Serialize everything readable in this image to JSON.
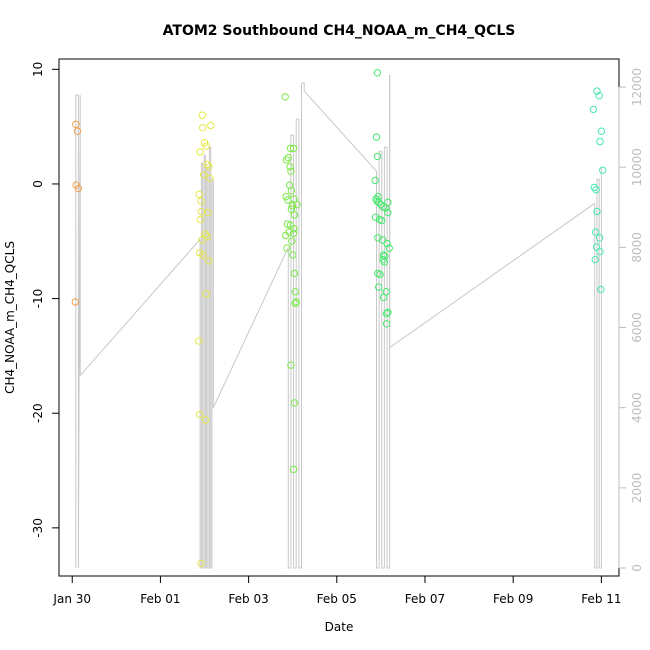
{
  "chart_data": {
    "type": "scatter",
    "title": "ATOM2 Southbound CH4_NOAA_m_CH4_QCLS",
    "xlabel": "Date",
    "ylabel": "CH4_NOAA_m_CH4_QCLS",
    "x_unit": "days since Jan 30",
    "xlim": [
      -0.3,
      12.4
    ],
    "ylim": [
      -34.2,
      10.9
    ],
    "y2lim": [
      -200,
      12700
    ],
    "x_ticks": [
      {
        "value": 0,
        "label": "Jan 30"
      },
      {
        "value": 2,
        "label": "Feb 01"
      },
      {
        "value": 4,
        "label": "Feb 03"
      },
      {
        "value": 6,
        "label": "Feb 05"
      },
      {
        "value": 8,
        "label": "Feb 07"
      },
      {
        "value": 10,
        "label": "Feb 09"
      },
      {
        "value": 12,
        "label": "Feb 11"
      }
    ],
    "y_ticks": [
      {
        "value": 10,
        "label": "10"
      },
      {
        "value": 0,
        "label": "0"
      },
      {
        "value": -10,
        "label": "-10"
      },
      {
        "value": -20,
        "label": "-20"
      },
      {
        "value": -30,
        "label": "-30"
      }
    ],
    "y2_ticks": [
      {
        "value": 0,
        "label": "0"
      },
      {
        "value": 2000,
        "label": "2000"
      },
      {
        "value": 4000,
        "label": "4000"
      },
      {
        "value": 6000,
        "label": "6000"
      },
      {
        "value": 8000,
        "label": "8000"
      },
      {
        "value": 10000,
        "label": "10000"
      },
      {
        "value": 12000,
        "label": "12000"
      }
    ],
    "altitude_line": {
      "color": "#c8c8c8",
      "segments": [
        {
          "x": [
            0.08,
            0.08,
            0.14,
            0.14,
            0.18,
            0.18
          ],
          "y": [
            0,
            11800,
            11800,
            0,
            11800,
            4800
          ]
        },
        {
          "x": [
            0.18,
            2.9
          ],
          "y": [
            4800,
            8200
          ]
        },
        {
          "x": [
            2.9,
            2.9,
            2.93,
            2.93,
            2.96,
            2.96,
            2.99,
            2.99,
            3.02,
            3.02,
            3.05,
            3.05,
            3.08,
            3.08,
            3.11,
            3.11,
            3.14,
            3.14,
            3.17,
            3.17,
            3.2,
            3.2
          ],
          "y": [
            8200,
            0,
            0,
            10100,
            10100,
            0,
            0,
            10300,
            10300,
            0,
            0,
            10000,
            10000,
            0,
            0,
            10500,
            10500,
            0,
            0,
            9700,
            9700,
            4000
          ]
        },
        {
          "x": [
            3.2,
            4.9
          ],
          "y": [
            4000,
            8000
          ]
        },
        {
          "x": [
            4.9,
            4.9,
            4.96,
            4.96,
            5.02,
            5.02,
            5.08,
            5.08,
            5.14,
            5.14,
            5.2,
            5.2,
            5.26,
            5.26
          ],
          "y": [
            8000,
            0,
            0,
            10800,
            10800,
            0,
            0,
            11200,
            11200,
            0,
            0,
            12100,
            12100,
            11900
          ]
        },
        {
          "x": [
            5.26,
            6.9
          ],
          "y": [
            11900,
            9900
          ]
        },
        {
          "x": [
            6.9,
            6.9,
            6.96,
            6.96,
            7.02,
            7.02,
            7.08,
            7.08,
            7.14,
            7.14,
            7.2,
            7.2
          ],
          "y": [
            9900,
            0,
            0,
            10400,
            10400,
            0,
            0,
            10500,
            10500,
            0,
            0,
            12300
          ]
        },
        {
          "x": [
            7.2,
            7.2
          ],
          "y": [
            12300,
            5500
          ]
        },
        {
          "x": [
            7.2,
            11.85
          ],
          "y": [
            5500,
            9100
          ]
        },
        {
          "x": [
            11.85,
            11.85,
            11.9,
            11.9,
            11.95,
            11.95,
            12.0,
            12.0
          ],
          "y": [
            9100,
            0,
            0,
            9700,
            9700,
            0,
            0,
            10000
          ]
        }
      ]
    },
    "series": [
      {
        "color": "#f0a050",
        "points": [
          [
            0.08,
            5.2
          ],
          [
            0.12,
            4.6
          ],
          [
            0.09,
            -0.1
          ],
          [
            0.14,
            -0.4
          ],
          [
            0.07,
            -10.3
          ]
        ]
      },
      {
        "color": "#e6e64a",
        "points": [
          [
            2.87,
            -13.7
          ],
          [
            2.89,
            -20.1
          ],
          [
            2.95,
            6.0
          ],
          [
            3.14,
            5.1
          ],
          [
            2.96,
            4.9
          ],
          [
            3.0,
            3.6
          ],
          [
            3.04,
            3.3
          ],
          [
            2.9,
            2.8
          ],
          [
            3.06,
            1.7
          ],
          [
            3.1,
            1.5
          ],
          [
            2.98,
            0.8
          ],
          [
            3.12,
            0.5
          ],
          [
            2.88,
            -0.9
          ],
          [
            2.92,
            -1.5
          ],
          [
            2.93,
            -2.4
          ],
          [
            3.08,
            -2.5
          ],
          [
            2.91,
            -3.1
          ],
          [
            3.02,
            -4.4
          ],
          [
            3.06,
            -4.6
          ],
          [
            2.94,
            -4.9
          ],
          [
            2.89,
            -6.0
          ],
          [
            2.96,
            -6.2
          ],
          [
            3.1,
            -6.7
          ],
          [
            3.04,
            -9.6
          ],
          [
            3.02,
            -20.6
          ],
          [
            2.92,
            -33.1
          ]
        ]
      },
      {
        "color": "#7ee84a",
        "points": [
          [
            4.83,
            7.6
          ],
          [
            4.95,
            3.1
          ],
          [
            5.02,
            3.1
          ],
          [
            4.9,
            2.3
          ],
          [
            4.86,
            2.1
          ],
          [
            4.94,
            1.5
          ],
          [
            4.96,
            1.1
          ],
          [
            4.93,
            -0.1
          ],
          [
            4.97,
            -0.6
          ],
          [
            4.85,
            -1.1
          ],
          [
            4.89,
            -1.4
          ],
          [
            5.03,
            -1.3
          ],
          [
            5.1,
            -1.8
          ],
          [
            4.99,
            -1.9
          ],
          [
            4.97,
            -2.2
          ],
          [
            5.04,
            -2.7
          ],
          [
            4.88,
            -3.5
          ],
          [
            4.95,
            -3.6
          ],
          [
            5.03,
            -3.9
          ],
          [
            4.92,
            -4.2
          ],
          [
            5.02,
            -4.3
          ],
          [
            4.84,
            -4.5
          ],
          [
            4.98,
            -5.0
          ],
          [
            4.87,
            -5.6
          ],
          [
            5.0,
            -6.2
          ],
          [
            5.04,
            -7.8
          ],
          [
            5.06,
            -9.4
          ],
          [
            5.08,
            -10.3
          ],
          [
            5.06,
            -10.4
          ],
          [
            4.96,
            -15.8
          ],
          [
            5.04,
            -19.1
          ],
          [
            5.02,
            -24.9
          ]
        ]
      },
      {
        "color": "#4ae870",
        "points": [
          [
            6.92,
            9.7
          ],
          [
            6.9,
            4.1
          ],
          [
            6.92,
            2.4
          ],
          [
            6.87,
            0.3
          ],
          [
            6.94,
            -1.1
          ],
          [
            6.89,
            -1.3
          ],
          [
            6.91,
            -1.5
          ],
          [
            6.95,
            -1.6
          ],
          [
            7.0,
            -1.8
          ],
          [
            7.16,
            -1.6
          ],
          [
            7.05,
            -2.0
          ],
          [
            7.11,
            -2.1
          ],
          [
            7.16,
            -2.5
          ],
          [
            6.88,
            -2.9
          ],
          [
            6.97,
            -3.1
          ],
          [
            7.02,
            -3.2
          ],
          [
            6.93,
            -4.7
          ],
          [
            7.04,
            -4.9
          ],
          [
            7.14,
            -5.2
          ],
          [
            7.19,
            -5.6
          ],
          [
            7.06,
            -6.2
          ],
          [
            7.09,
            -6.3
          ],
          [
            7.05,
            -6.6
          ],
          [
            7.08,
            -6.8
          ],
          [
            6.93,
            -7.8
          ],
          [
            6.98,
            -7.9
          ],
          [
            6.95,
            -9.0
          ],
          [
            7.12,
            -9.4
          ],
          [
            7.06,
            -9.9
          ],
          [
            7.13,
            -11.3
          ],
          [
            7.16,
            -11.2
          ],
          [
            7.13,
            -12.2
          ]
        ]
      },
      {
        "color": "#4ae8b4",
        "points": [
          [
            11.9,
            8.1
          ],
          [
            11.95,
            7.7
          ],
          [
            11.82,
            6.5
          ],
          [
            12.0,
            4.6
          ],
          [
            11.97,
            3.7
          ],
          [
            12.03,
            1.2
          ],
          [
            11.84,
            -0.3
          ],
          [
            11.88,
            -0.5
          ],
          [
            11.9,
            -2.4
          ],
          [
            11.87,
            -4.2
          ],
          [
            11.96,
            -4.7
          ],
          [
            11.89,
            -5.5
          ],
          [
            11.97,
            -5.9
          ],
          [
            11.86,
            -6.6
          ],
          [
            11.99,
            -9.2
          ]
        ]
      }
    ]
  }
}
